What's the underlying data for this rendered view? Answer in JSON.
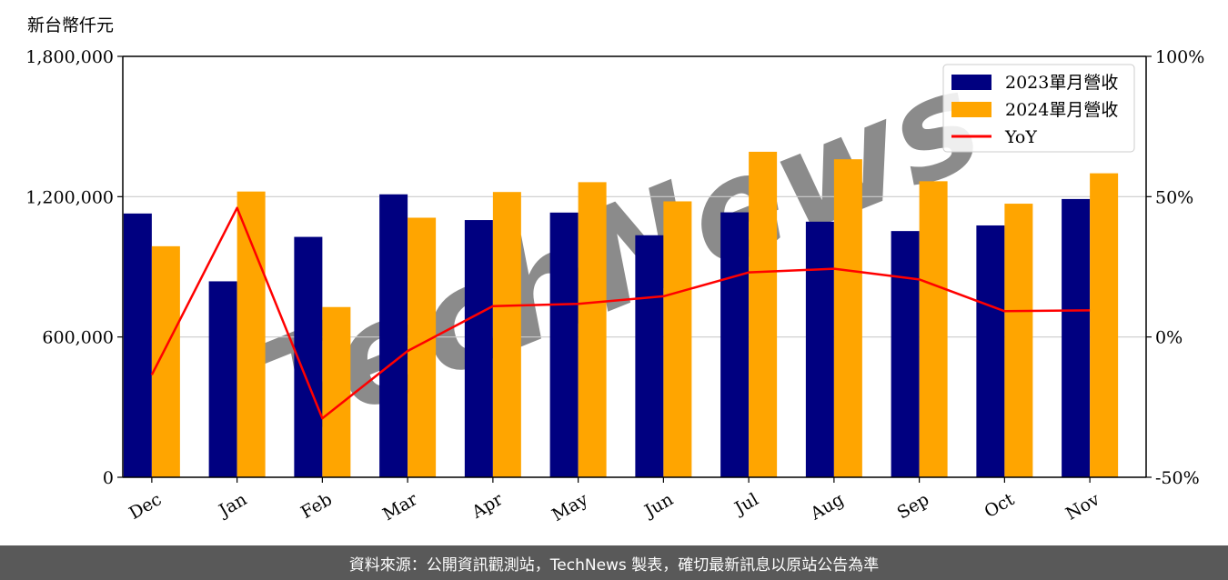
{
  "chart_data": {
    "type": "bar",
    "unit_label": "新台幣仟元",
    "categories": [
      "Dec",
      "Jan",
      "Feb",
      "Mar",
      "Apr",
      "May",
      "Jun",
      "Jul",
      "Aug",
      "Sep",
      "Oct",
      "Nov"
    ],
    "series": [
      {
        "name": "2023單月營收",
        "type": "bar",
        "color": "#000080",
        "values": [
          1128000,
          838000,
          1028000,
          1210000,
          1100000,
          1132000,
          1035000,
          1133000,
          1093000,
          1053000,
          1077000,
          1190000
        ]
      },
      {
        "name": "2024單月營收",
        "type": "bar",
        "color": "#ffa500",
        "values": [
          988000,
          1222000,
          728000,
          1110000,
          1220000,
          1262000,
          1180000,
          1392000,
          1360000,
          1266000,
          1170000,
          1300000
        ]
      },
      {
        "name": "YoY",
        "type": "line",
        "axis": "right",
        "color": "#ff0000",
        "values": [
          -13.5,
          46,
          -29,
          -5,
          11,
          11.8,
          14.5,
          23,
          24.3,
          20.5,
          9.2,
          9.5
        ]
      }
    ],
    "y_left": {
      "min": 0,
      "max": 1800000,
      "ticks": [
        "0",
        "600,000",
        "1,200,000",
        "1,800,000"
      ]
    },
    "y_right": {
      "min": -50,
      "max": 100,
      "ticks": [
        "-50%",
        "0%",
        "50%",
        "100%"
      ]
    },
    "grid": "horizontal",
    "legend": "top-right"
  },
  "watermark": "TechNews",
  "footer": {
    "source": "資料來源：公開資訊觀測站，TechNews 製表，確切最新訊息以原站公告為準"
  }
}
